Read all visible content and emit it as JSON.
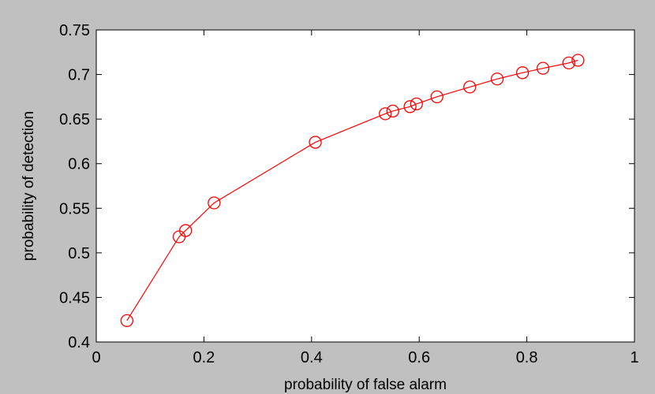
{
  "colors": {
    "figure_background": "#c0c0c0",
    "axes_background": "#ffffff",
    "series": "#ff0000"
  },
  "chart_data": {
    "type": "line",
    "title": "",
    "xlabel": "probability of false alarm",
    "ylabel": "probability of detection",
    "xlim": [
      0,
      1
    ],
    "ylim": [
      0.4,
      0.75
    ],
    "xticks": [
      0,
      0.2,
      0.4,
      0.6,
      0.8,
      1
    ],
    "xtick_labels": [
      "0",
      "0.2",
      "0.4",
      "0.6",
      "0.8",
      "1"
    ],
    "yticks": [
      0.4,
      0.45,
      0.5,
      0.55,
      0.6,
      0.65,
      0.7,
      0.75
    ],
    "ytick_labels": [
      "0.4",
      "0.45",
      "0.5",
      "0.55",
      "0.6",
      "0.65",
      "0.7",
      "0.75"
    ],
    "grid": false,
    "marker": "circle",
    "series": [
      {
        "x": [
          0.057,
          0.154,
          0.166,
          0.219,
          0.407,
          0.537,
          0.551,
          0.583,
          0.595,
          0.633,
          0.694,
          0.745,
          0.792,
          0.83,
          0.878,
          0.895
        ],
        "y": [
          0.424,
          0.518,
          0.525,
          0.556,
          0.624,
          0.656,
          0.659,
          0.664,
          0.667,
          0.675,
          0.686,
          0.695,
          0.702,
          0.707,
          0.713,
          0.716
        ]
      }
    ]
  }
}
